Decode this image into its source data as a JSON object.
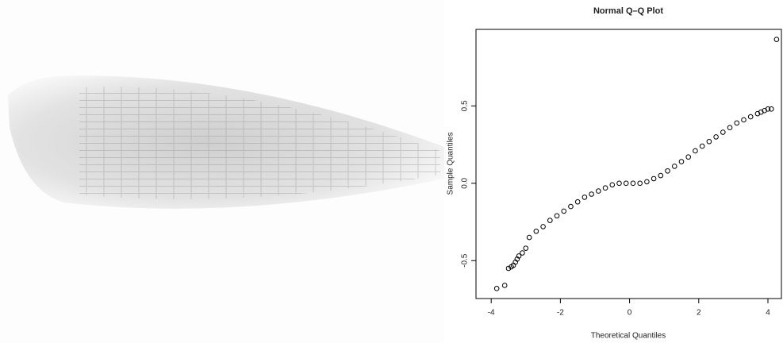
{
  "chart_data": {
    "type": "scatter",
    "title": "Normal Q–Q Plot",
    "x_label": "Theoretical Quantiles",
    "y_label": "Sample Quantiles",
    "x": [
      -3.84,
      -3.61,
      -3.5,
      -3.42,
      -3.36,
      -3.3,
      -3.25,
      -3.2,
      -3.1,
      -3.0,
      -2.9,
      -2.7,
      -2.5,
      -2.3,
      -2.1,
      -1.9,
      -1.7,
      -1.5,
      -1.3,
      -1.1,
      -0.9,
      -0.7,
      -0.5,
      -0.3,
      -0.1,
      0.1,
      0.3,
      0.5,
      0.7,
      0.9,
      1.1,
      1.3,
      1.5,
      1.7,
      1.9,
      2.1,
      2.3,
      2.5,
      2.7,
      2.9,
      3.1,
      3.3,
      3.5,
      3.7,
      3.8,
      3.9,
      4.0,
      4.1,
      4.25
    ],
    "y": [
      -0.68,
      -0.66,
      -0.55,
      -0.54,
      -0.53,
      -0.51,
      -0.49,
      -0.47,
      -0.45,
      -0.42,
      -0.35,
      -0.31,
      -0.28,
      -0.24,
      -0.21,
      -0.18,
      -0.15,
      -0.12,
      -0.09,
      -0.07,
      -0.05,
      -0.03,
      -0.01,
      0.0,
      0.0,
      0.0,
      0.0,
      0.01,
      0.03,
      0.05,
      0.08,
      0.11,
      0.14,
      0.17,
      0.21,
      0.24,
      0.27,
      0.3,
      0.33,
      0.36,
      0.39,
      0.41,
      0.43,
      0.45,
      0.46,
      0.47,
      0.48,
      0.48,
      0.93
    ],
    "color": "#000000",
    "xlim": [
      -4.44,
      4.39
    ],
    "ylim": [
      -0.745,
      0.995
    ],
    "xticks": [
      -4,
      -2,
      0,
      2,
      4
    ],
    "yticks": [
      -0.5,
      {
        "value": 0,
        "label": "0.0"
      },
      0.5
    ]
  }
}
